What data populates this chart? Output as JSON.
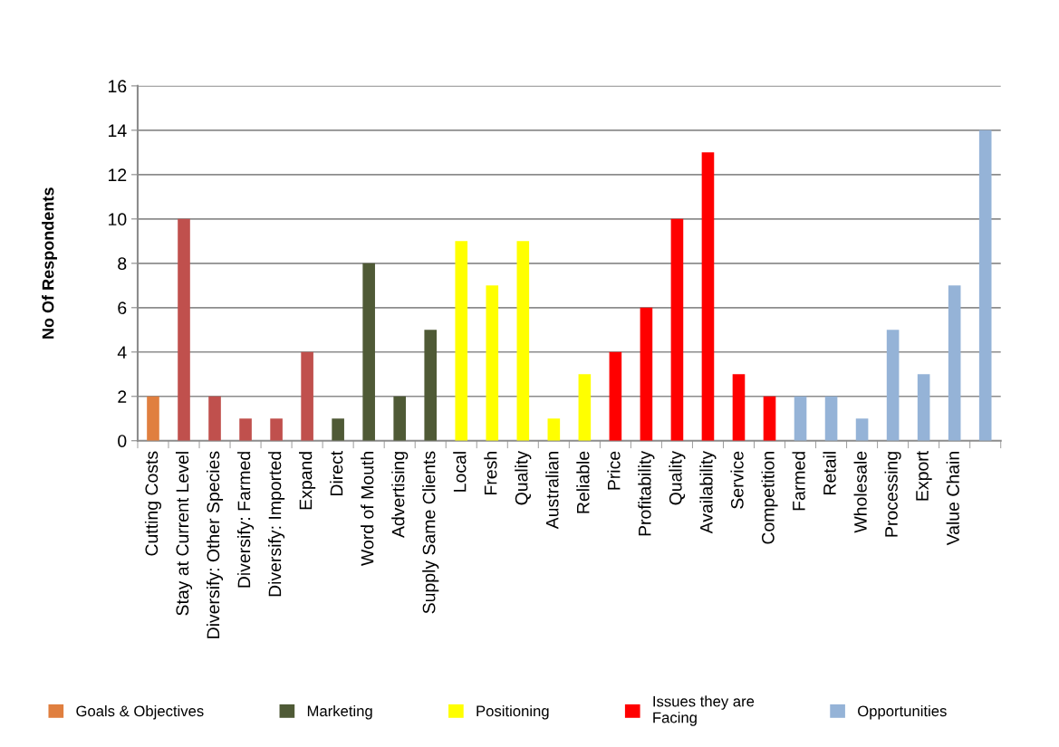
{
  "chart_data": {
    "type": "bar",
    "ylabel": "No Of Respondents",
    "categories": [
      "Cutting Costs",
      "Stay at Current Level",
      "Diversify: Other Species",
      "Diversify: Farmed",
      "Diversify: Imported",
      "Expand",
      "Direct",
      "Word of Mouth",
      "Advertising",
      "Supply Same Clients",
      "Local",
      "Fresh",
      "Quality",
      "Australian",
      "Reliable",
      "Price",
      "Profitability",
      "Quality",
      "Availability",
      "Service",
      "Competition",
      "Farmed",
      "Retail",
      "Wholesale",
      "Processing",
      "Export",
      "Value Chain",
      null
    ],
    "series": [
      {
        "name": "Goals & Objectives",
        "color": "#e07f3f",
        "values": [
          2,
          null,
          null,
          null,
          null,
          null,
          null,
          null,
          null,
          null,
          null,
          null,
          null,
          null,
          null,
          null,
          null,
          null,
          null,
          null,
          null,
          null,
          null,
          null,
          null,
          null,
          null,
          null
        ]
      },
      {
        "color": "#c0504d",
        "values": [
          null,
          10,
          2,
          1,
          1,
          4,
          null,
          null,
          null,
          null,
          null,
          null,
          null,
          null,
          null,
          null,
          null,
          null,
          null,
          null,
          null,
          null,
          null,
          null,
          null,
          null,
          null,
          null
        ]
      },
      {
        "name": "Marketing",
        "color": "#4f5a36",
        "values": [
          null,
          null,
          null,
          null,
          null,
          null,
          1,
          8,
          2,
          5,
          null,
          null,
          null,
          null,
          null,
          null,
          null,
          null,
          null,
          null,
          null,
          null,
          null,
          null,
          null,
          null,
          null,
          null
        ]
      },
      {
        "name": "Positioning",
        "color": "#ffff00",
        "values": [
          null,
          null,
          null,
          null,
          null,
          null,
          null,
          null,
          null,
          null,
          9,
          7,
          9,
          1,
          3,
          null,
          null,
          null,
          null,
          null,
          null,
          null,
          null,
          null,
          null,
          null,
          null,
          null
        ]
      },
      {
        "name": "Issues they are\nFacing",
        "color": "#ff0000",
        "values": [
          null,
          null,
          null,
          null,
          null,
          null,
          null,
          null,
          null,
          null,
          null,
          null,
          null,
          null,
          null,
          4,
          6,
          10,
          13,
          3,
          2,
          null,
          null,
          null,
          null,
          null,
          null,
          null
        ]
      },
      {
        "name": "Opportunities",
        "color": "#95b3d7",
        "values": [
          null,
          null,
          null,
          null,
          null,
          null,
          null,
          null,
          null,
          null,
          null,
          null,
          null,
          null,
          null,
          null,
          null,
          null,
          null,
          null,
          null,
          2,
          2,
          1,
          5,
          3,
          7,
          14
        ]
      }
    ],
    "ylim": [
      0,
      16
    ],
    "yticks": [
      0,
      2,
      4,
      6,
      8,
      10,
      12,
      14,
      16
    ],
    "grid": "y",
    "legend": "bottom"
  }
}
